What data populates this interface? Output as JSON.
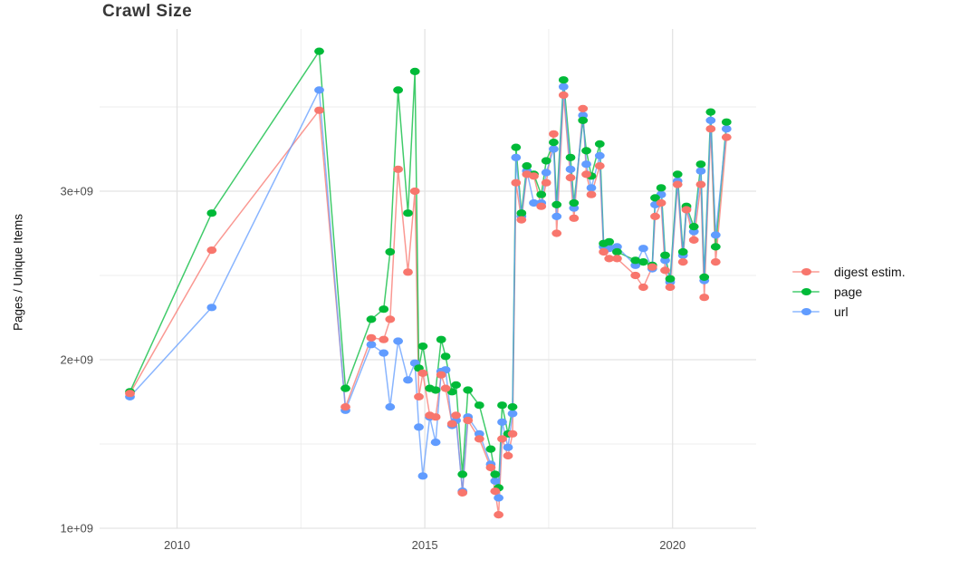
{
  "title": "Crawl Size",
  "axes": {
    "y_label": "Pages / Unique Items",
    "y_ticks": [
      {
        "label": "1e+09",
        "value": 1
      },
      {
        "label": "2e+09",
        "value": 2
      },
      {
        "label": "3e+09",
        "value": 3
      }
    ],
    "y_minor_values": [
      1.5,
      2.5,
      3.5
    ],
    "x_ticks": [
      {
        "label": "2010",
        "year": 2010
      },
      {
        "label": "2015",
        "year": 2015
      },
      {
        "label": "2020",
        "year": 2020
      }
    ],
    "x_minor_years": [
      2012.5,
      2017.5
    ],
    "tick_label_color": "#4d4d4d",
    "grid_major_color": "#e3e3e3",
    "grid_minor_color": "#ededed"
  },
  "legend": [
    {
      "name": "digest estim.",
      "color": "#F8766D"
    },
    {
      "name": "page",
      "color": "#00BA38"
    },
    {
      "name": "url",
      "color": "#619CFF"
    }
  ],
  "chart_data": {
    "type": "line",
    "title": "Crawl Size",
    "xlabel": "",
    "ylabel": "Pages / Unique Items",
    "y_unit": "items per crawl (billions, value x 1e9)",
    "x_unit": "year (decimal)",
    "xlim": [
      2008.4,
      2021.7
    ],
    "ylim": [
      0.95,
      3.97
    ],
    "grid": true,
    "legend_position": "right",
    "marker": "point",
    "x": [
      2009.05,
      2010.7,
      2012.87,
      2013.4,
      2013.92,
      2014.17,
      2014.3,
      2014.46,
      2014.66,
      2014.8,
      2014.88,
      2014.96,
      2015.1,
      2015.22,
      2015.33,
      2015.42,
      2015.55,
      2015.63,
      2015.76,
      2015.87,
      2016.1,
      2016.33,
      2016.42,
      2016.49,
      2016.56,
      2016.68,
      2016.77,
      2016.84,
      2016.95,
      2017.06,
      2017.2,
      2017.35,
      2017.45,
      2017.6,
      2017.66,
      2017.8,
      2017.94,
      2018.01,
      2018.19,
      2018.26,
      2018.36,
      2018.53,
      2018.61,
      2018.72,
      2018.88,
      2019.25,
      2019.41,
      2019.59,
      2019.65,
      2019.77,
      2019.85,
      2019.95,
      2020.1,
      2020.21,
      2020.28,
      2020.43,
      2020.57,
      2020.64,
      2020.77,
      2020.87,
      2021.09
    ],
    "series": [
      {
        "name": "digest estim.",
        "color": "#F8766D",
        "values": [
          1.8,
          2.65,
          3.48,
          1.72,
          2.13,
          2.12,
          2.24,
          3.13,
          2.52,
          3.0,
          1.78,
          1.92,
          1.67,
          1.66,
          1.91,
          1.83,
          1.62,
          1.67,
          1.21,
          1.64,
          1.53,
          1.36,
          1.22,
          1.08,
          1.53,
          1.43,
          1.56,
          3.05,
          2.83,
          3.1,
          3.09,
          2.91,
          3.05,
          3.34,
          2.75,
          3.57,
          3.08,
          2.84,
          3.49,
          3.1,
          2.98,
          3.15,
          2.64,
          2.6,
          2.6,
          2.5,
          2.43,
          2.55,
          2.85,
          2.93,
          2.53,
          2.43,
          3.04,
          2.58,
          2.89,
          2.71,
          3.04,
          2.37,
          3.37,
          2.58,
          3.32
        ]
      },
      {
        "name": "page",
        "color": "#00BA38",
        "values": [
          1.81,
          2.87,
          3.83,
          1.83,
          2.24,
          2.3,
          2.64,
          3.6,
          2.87,
          3.71,
          1.95,
          2.08,
          1.83,
          1.82,
          2.12,
          2.02,
          1.81,
          1.85,
          1.32,
          1.82,
          1.73,
          1.47,
          1.32,
          1.24,
          1.73,
          1.56,
          1.72,
          3.26,
          2.87,
          3.15,
          3.1,
          2.98,
          3.18,
          3.29,
          2.92,
          3.66,
          3.2,
          2.93,
          3.42,
          3.24,
          3.09,
          3.28,
          2.69,
          2.7,
          2.64,
          2.59,
          2.58,
          2.56,
          2.96,
          3.02,
          2.62,
          2.48,
          3.1,
          2.64,
          2.91,
          2.79,
          3.16,
          2.49,
          3.47,
          2.67,
          3.41
        ]
      },
      {
        "name": "url",
        "color": "#619CFF",
        "values": [
          1.78,
          2.31,
          3.6,
          1.7,
          2.09,
          2.04,
          1.72,
          2.11,
          1.88,
          1.98,
          1.6,
          1.31,
          1.66,
          1.51,
          1.93,
          1.94,
          1.61,
          1.64,
          1.22,
          1.66,
          1.56,
          1.38,
          1.28,
          1.18,
          1.63,
          1.48,
          1.68,
          3.2,
          2.85,
          3.12,
          2.93,
          2.93,
          3.11,
          3.25,
          2.85,
          3.62,
          3.13,
          2.9,
          3.45,
          3.16,
          3.02,
          3.21,
          2.67,
          2.66,
          2.67,
          2.56,
          2.66,
          2.54,
          2.92,
          2.98,
          2.59,
          2.46,
          3.06,
          2.62,
          2.9,
          2.76,
          3.12,
          2.47,
          3.42,
          2.74,
          3.37
        ]
      }
    ]
  }
}
